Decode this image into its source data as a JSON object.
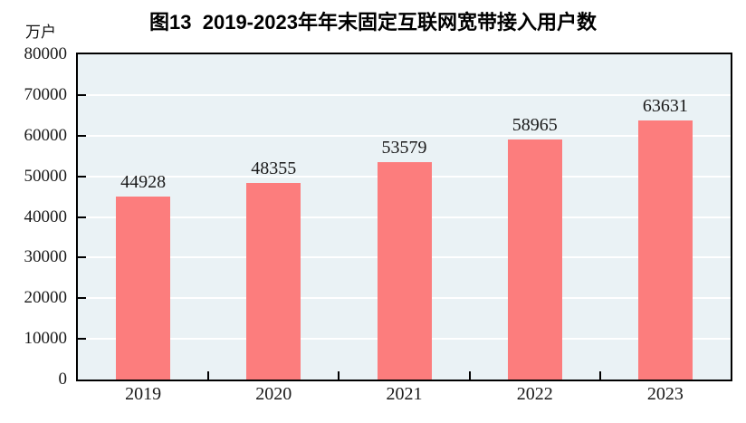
{
  "chart_data": {
    "type": "bar",
    "title": "图13  2019-2023年年末固定互联网宽带接入用户数",
    "unit_label": "万户",
    "categories": [
      "2019",
      "2020",
      "2021",
      "2022",
      "2023"
    ],
    "values": [
      44928,
      48355,
      53579,
      58965,
      63631
    ],
    "ylim": [
      0,
      80000
    ],
    "y_ticks": [
      0,
      10000,
      20000,
      30000,
      40000,
      50000,
      60000,
      70000,
      80000
    ],
    "grid": true,
    "legend": "none",
    "bar_color": "#FC7D7D",
    "plot_bg_color": "#EAF2F5",
    "gridline_color": "#FFFFFF",
    "axis_color": "#000000",
    "text_color": "#1a1a1a"
  }
}
